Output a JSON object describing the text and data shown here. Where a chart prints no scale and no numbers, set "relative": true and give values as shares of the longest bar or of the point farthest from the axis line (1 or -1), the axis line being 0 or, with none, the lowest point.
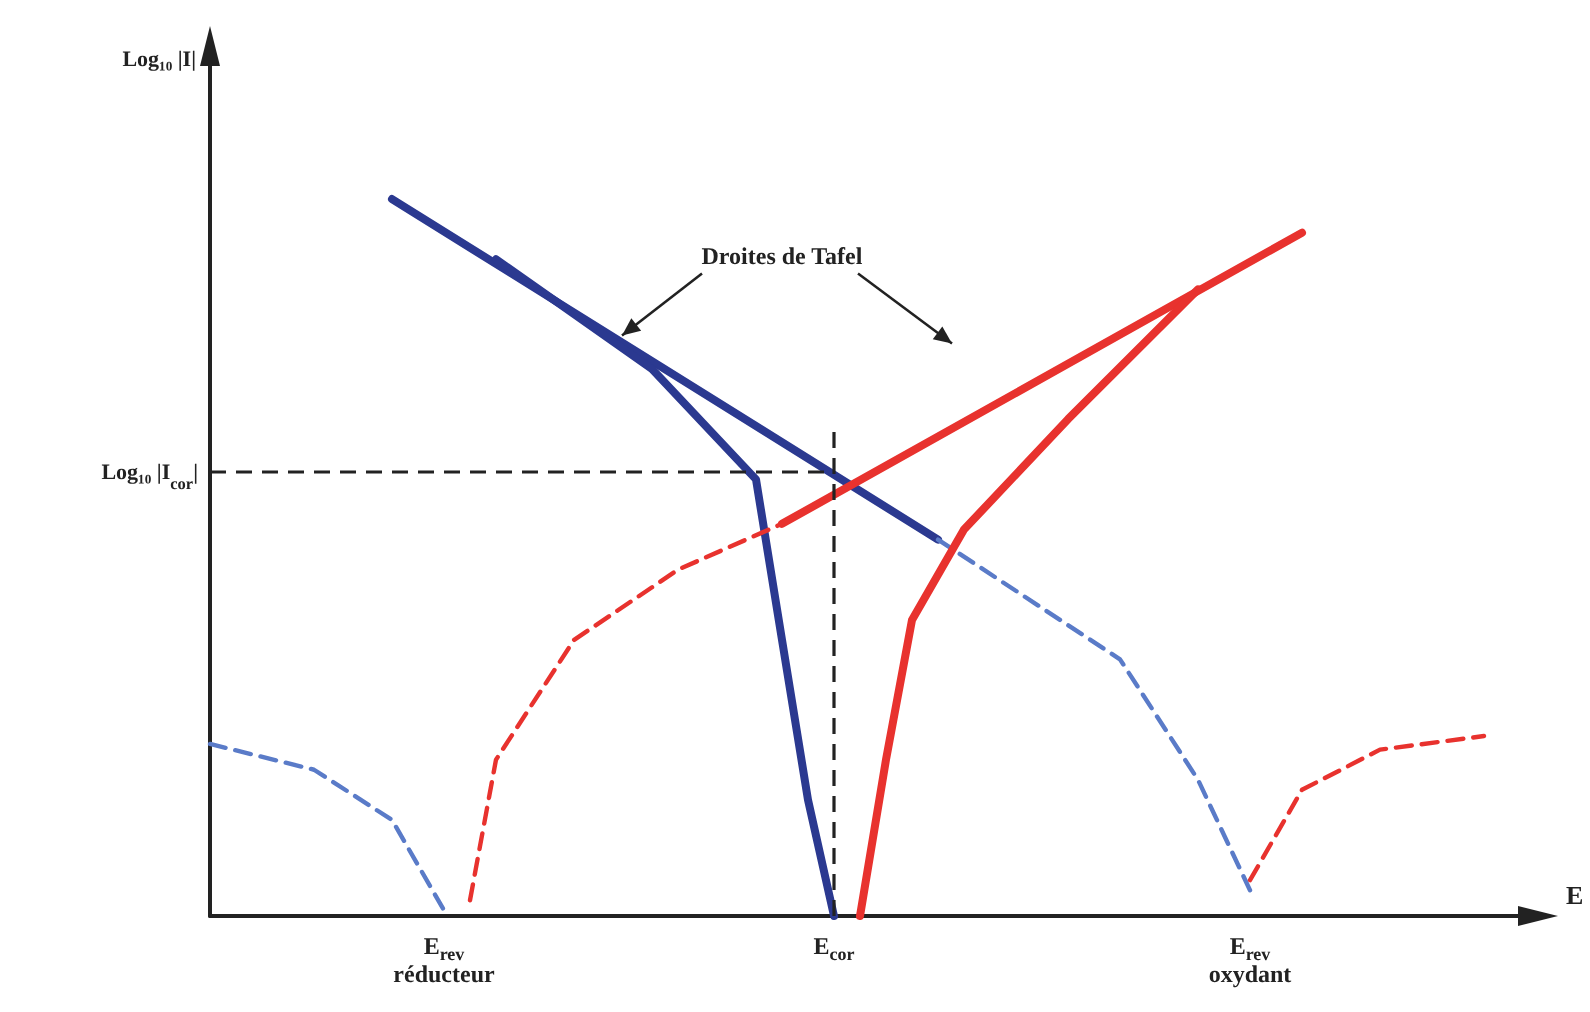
{
  "chart_data": {
    "type": "line",
    "relative": true,
    "xlabel": "E",
    "marker": "none",
    "categories": [
      null,
      null,
      null,
      null,
      null,
      null,
      null,
      null,
      null,
      "E$_{rev}$\nréducteur",
      null,
      null,
      null,
      null,
      null,
      null,
      null,
      null,
      null,
      null,
      null,
      null,
      null,
      null,
      "E$_{cor}$",
      null,
      null,
      null,
      null,
      null,
      null,
      null,
      null,
      null,
      null,
      null,
      null,
      null,
      null,
      null,
      "E$_{rev}$\noxydant",
      null,
      null,
      null,
      null,
      null,
      null,
      null,
      null,
      null,
      null
    ],
    "annotations": [
      "Log₁₀ |I|",
      "Droites de Tafel"
    ],
    "ref_lines": [
      {
        "axis": "y",
        "value": 0.62,
        "label": "Log₁₀ |I$_{cor}$|",
        "color": "#222222",
        "line_style": "dashed"
      },
      {
        "axis": "x",
        "value": "E$_{cor}$",
        "label": null,
        "color": "#222222",
        "line_style": "dashed"
      }
    ],
    "series": [
      {
        "color": "#2b3990",
        "line_style": "solid",
        "values": [
          null,
          null,
          null,
          null,
          null,
          null,
          null,
          1.0,
          null,
          null,
          null,
          null,
          null,
          null,
          null,
          null,
          null,
          null,
          null,
          null,
          null,
          null,
          null,
          null,
          null,
          null,
          null,
          null,
          0.525,
          null,
          null,
          null,
          null,
          null,
          null,
          null,
          null,
          null,
          null,
          null,
          null,
          null,
          null,
          null,
          null,
          null,
          null,
          null,
          null,
          null,
          null
        ]
      },
      {
        "color": "#2b3990",
        "line_style": "solid",
        "values": [
          null,
          null,
          null,
          null,
          null,
          null,
          null,
          null,
          null,
          null,
          null,
          0.916,
          null,
          null,
          null,
          null,
          null,
          0.763,
          null,
          null,
          null,
          0.609,
          0.385,
          0.162,
          0,
          null,
          null,
          null,
          null,
          null,
          null,
          null,
          null,
          null,
          null,
          null,
          null,
          null,
          null,
          null,
          null,
          null,
          null,
          null,
          null,
          null,
          null,
          null,
          null,
          null,
          null
        ]
      },
      {
        "color": "#5a7bc8",
        "line_style": "dashed",
        "values": [
          null,
          null,
          null,
          null,
          null,
          null,
          null,
          null,
          null,
          null,
          null,
          null,
          null,
          null,
          null,
          null,
          null,
          null,
          null,
          null,
          null,
          null,
          null,
          null,
          null,
          null,
          null,
          null,
          0.525,
          null,
          null,
          null,
          null,
          null,
          null,
          0.358,
          null,
          null,
          0.19,
          null,
          0.036,
          null,
          null,
          null,
          null,
          null,
          null,
          null,
          null,
          null,
          null
        ]
      },
      {
        "color": "#5a7bc8",
        "line_style": "dashed",
        "values": [
          0.24,
          null,
          null,
          null,
          0.204,
          null,
          null,
          0.134,
          null,
          0.008,
          null,
          null,
          null,
          null,
          null,
          null,
          null,
          null,
          null,
          null,
          null,
          null,
          null,
          null,
          null,
          null,
          null,
          null,
          null,
          null,
          null,
          null,
          null,
          null,
          null,
          null,
          null,
          null,
          null,
          null,
          null,
          null,
          null,
          null,
          null,
          null,
          null,
          null,
          null,
          null,
          null
        ]
      },
      {
        "color": "#e8322e",
        "line_style": "solid",
        "values": [
          null,
          null,
          null,
          null,
          null,
          null,
          null,
          null,
          null,
          null,
          null,
          null,
          null,
          null,
          null,
          null,
          null,
          null,
          null,
          null,
          null,
          null,
          0.547,
          null,
          null,
          null,
          null,
          null,
          null,
          null,
          null,
          null,
          null,
          null,
          null,
          null,
          null,
          null,
          null,
          null,
          null,
          null,
          0.953,
          null,
          null,
          null,
          null,
          null,
          null,
          null,
          null
        ]
      },
      {
        "color": "#e8322e",
        "line_style": "solid",
        "values": [
          null,
          null,
          null,
          null,
          null,
          null,
          null,
          null,
          null,
          null,
          null,
          null,
          null,
          null,
          null,
          null,
          null,
          null,
          null,
          null,
          null,
          null,
          null,
          null,
          null,
          0,
          0.218,
          0.413,
          null,
          0.539,
          null,
          null,
          null,
          0.693,
          null,
          null,
          null,
          null,
          0.874,
          null,
          null,
          null,
          null,
          null,
          null,
          null,
          null,
          null,
          null,
          null,
          null
        ]
      },
      {
        "color": "#e8322e",
        "line_style": "dashed",
        "values": [
          null,
          null,
          null,
          null,
          null,
          null,
          null,
          null,
          null,
          null,
          0.022,
          0.218,
          null,
          null,
          0.385,
          null,
          null,
          null,
          0.483,
          null,
          null,
          null,
          0.547,
          null,
          null,
          null,
          null,
          null,
          null,
          null,
          null,
          null,
          null,
          null,
          null,
          null,
          null,
          null,
          null,
          null,
          null,
          null,
          null,
          null,
          null,
          null,
          null,
          null,
          null,
          null,
          null
        ]
      },
      {
        "color": "#e8322e",
        "line_style": "dashed",
        "values": [
          null,
          null,
          null,
          null,
          null,
          null,
          null,
          null,
          null,
          null,
          null,
          null,
          null,
          null,
          null,
          null,
          null,
          null,
          null,
          null,
          null,
          null,
          null,
          null,
          null,
          null,
          null,
          null,
          null,
          null,
          null,
          null,
          null,
          null,
          null,
          null,
          null,
          null,
          null,
          null,
          0.05,
          null,
          0.176,
          null,
          null,
          0.232,
          null,
          null,
          null,
          0.251,
          null
        ]
      }
    ]
  }
}
